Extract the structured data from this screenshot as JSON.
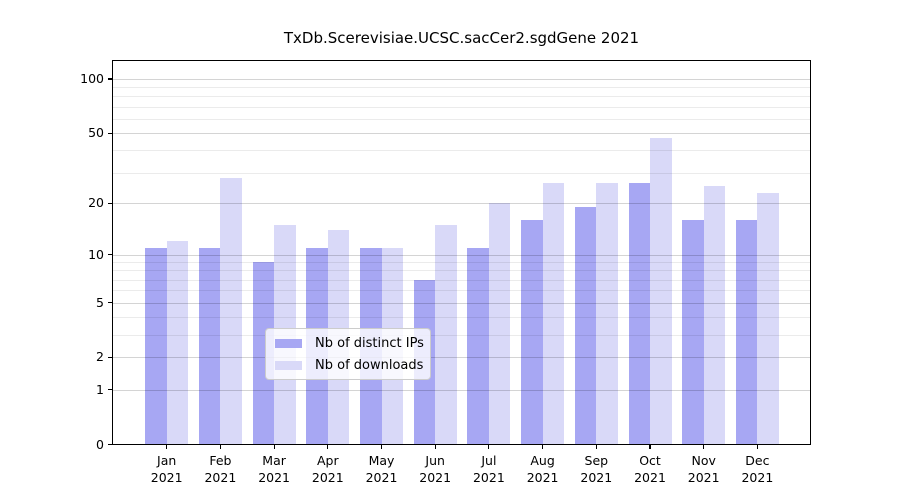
{
  "chart_data": {
    "type": "bar",
    "title": "TxDb.Scerevisiae.UCSC.sacCer2.sgdGene 2021",
    "categories": [
      "Jan",
      "Feb",
      "Mar",
      "Apr",
      "May",
      "Jun",
      "Jul",
      "Aug",
      "Sep",
      "Oct",
      "Nov",
      "Dec"
    ],
    "year_label": "2021",
    "series": [
      {
        "name": "Nb of distinct IPs",
        "color": "#a7a7f3",
        "values": [
          11,
          11,
          9,
          11,
          11,
          7,
          11,
          16,
          19,
          26,
          16,
          16
        ]
      },
      {
        "name": "Nb of downloads",
        "color": "#d9d9f8",
        "values": [
          12,
          28,
          15,
          14,
          11,
          15,
          20,
          26,
          26,
          47,
          25,
          23
        ]
      }
    ],
    "y_scale": "log1p",
    "ylim": [
      0,
      128
    ],
    "y_major_ticks": [
      0,
      1,
      2,
      5,
      10,
      20,
      50,
      100
    ],
    "y_minor_ticks": [
      3,
      4,
      6,
      7,
      8,
      9,
      30,
      40,
      60,
      70,
      80,
      90
    ],
    "grid": true,
    "legend": {
      "position": "lower-center",
      "entries": [
        "Nb of distinct IPs",
        "Nb of downloads"
      ]
    }
  }
}
